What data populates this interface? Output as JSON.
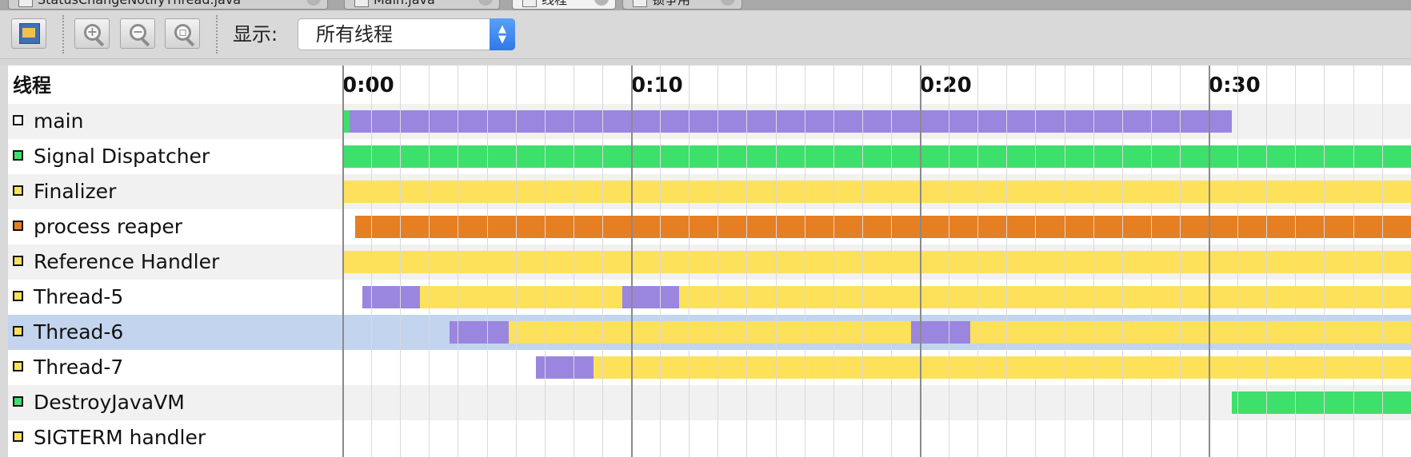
{
  "tabs": [
    {
      "label": "StatusChangeNotifyThread.java",
      "active": false
    },
    {
      "label": "Main.java",
      "active": false
    },
    {
      "label": "线程",
      "active": true
    },
    {
      "label": "锁争用",
      "active": false
    }
  ],
  "toolbar": {
    "export_icon": "export-icon",
    "zoom_in_icon": "zoom-in-icon",
    "zoom_out_icon": "zoom-out-icon",
    "zoom_fit_icon": "zoom-fit-icon",
    "display_label": "显示:",
    "display_value": "所有线程"
  },
  "timeline": {
    "column_header": "线程",
    "time_labels": [
      "0:00",
      "0:10",
      "0:20",
      "0:30"
    ],
    "time_marks_seconds": [
      0,
      10,
      20,
      30
    ]
  },
  "state_colors": {
    "running": "#3de06b",
    "sleeping": "#9b86df",
    "wait": "#fde15a",
    "park": "#e67f22",
    "none": "#ffffff"
  },
  "threads": [
    {
      "name": "main",
      "state": "none",
      "segments": [
        [
          0,
          0.25,
          "running"
        ],
        [
          0.25,
          30.8,
          "sleeping"
        ]
      ]
    },
    {
      "name": "Signal Dispatcher",
      "state": "running",
      "segments": [
        [
          0,
          37,
          "running"
        ]
      ]
    },
    {
      "name": "Finalizer",
      "state": "wait",
      "segments": [
        [
          0,
          37,
          "wait"
        ]
      ]
    },
    {
      "name": "process reaper",
      "state": "park",
      "segments": [
        [
          0.45,
          37,
          "park"
        ]
      ]
    },
    {
      "name": "Reference Handler",
      "state": "wait",
      "segments": [
        [
          0,
          37,
          "wait"
        ]
      ]
    },
    {
      "name": "Thread-5",
      "state": "wait",
      "segments": [
        [
          0.7,
          2.7,
          "sleeping"
        ],
        [
          2.7,
          9.7,
          "wait"
        ],
        [
          9.7,
          11.65,
          "sleeping"
        ],
        [
          11.65,
          37,
          "wait"
        ]
      ]
    },
    {
      "name": "Thread-6",
      "state": "wait",
      "selected": true,
      "segments": [
        [
          3.7,
          5.75,
          "sleeping"
        ],
        [
          5.75,
          19.7,
          "wait"
        ],
        [
          19.7,
          21.75,
          "sleeping"
        ],
        [
          21.75,
          37,
          "wait"
        ]
      ]
    },
    {
      "name": "Thread-7",
      "state": "wait",
      "segments": [
        [
          6.7,
          8.7,
          "sleeping"
        ],
        [
          8.7,
          37,
          "wait"
        ]
      ]
    },
    {
      "name": "DestroyJavaVM",
      "state": "running",
      "segments": [
        [
          30.8,
          37,
          "running"
        ]
      ]
    },
    {
      "name": "SIGTERM handler",
      "state": "wait",
      "segments": []
    }
  ]
}
